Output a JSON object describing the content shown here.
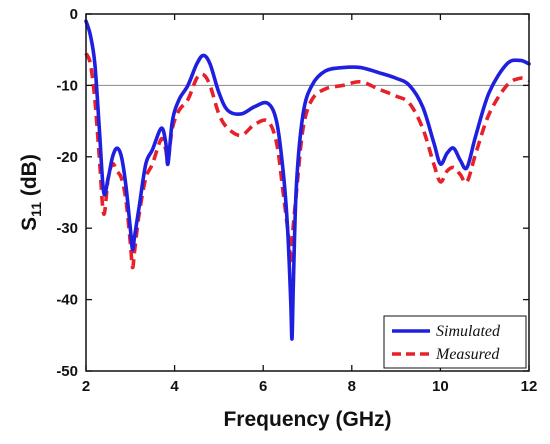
{
  "chart_data": {
    "type": "line",
    "xlabel": "Frequency (GHz)",
    "ylabel_main": "S",
    "ylabel_sub": "11",
    "ylabel_unit": " (dB)",
    "xlim": [
      2,
      12
    ],
    "ylim": [
      -50,
      0
    ],
    "xticks": [
      2,
      4,
      6,
      8,
      10,
      12
    ],
    "yticks": [
      0,
      -10,
      -20,
      -30,
      -40,
      -50
    ],
    "reference_line": -10,
    "grid": false,
    "legend_position": "bottom-right",
    "series": [
      {
        "name": "Simulated",
        "color": "#1f1fe0",
        "style": "solid",
        "points": [
          [
            2.0,
            -1.0
          ],
          [
            2.1,
            -3.0
          ],
          [
            2.2,
            -7.0
          ],
          [
            2.3,
            -16.0
          ],
          [
            2.4,
            -25.0
          ],
          [
            2.5,
            -23.0
          ],
          [
            2.6,
            -20.0
          ],
          [
            2.7,
            -18.8
          ],
          [
            2.8,
            -20.0
          ],
          [
            2.9,
            -24.0
          ],
          [
            3.0,
            -30.0
          ],
          [
            3.05,
            -33.0
          ],
          [
            3.1,
            -31.0
          ],
          [
            3.2,
            -27.0
          ],
          [
            3.35,
            -21.0
          ],
          [
            3.5,
            -19.0
          ],
          [
            3.7,
            -16.0
          ],
          [
            3.8,
            -18.0
          ],
          [
            3.85,
            -21.0
          ],
          [
            3.95,
            -15.0
          ],
          [
            4.1,
            -12.0
          ],
          [
            4.3,
            -10.0
          ],
          [
            4.5,
            -7.0
          ],
          [
            4.65,
            -5.8
          ],
          [
            4.8,
            -7.0
          ],
          [
            5.0,
            -11.0
          ],
          [
            5.2,
            -13.5
          ],
          [
            5.5,
            -14.0
          ],
          [
            5.8,
            -13.0
          ],
          [
            6.1,
            -12.5
          ],
          [
            6.3,
            -15.0
          ],
          [
            6.45,
            -22.0
          ],
          [
            6.55,
            -30.0
          ],
          [
            6.62,
            -40.0
          ],
          [
            6.65,
            -45.5
          ],
          [
            6.68,
            -38.0
          ],
          [
            6.75,
            -24.0
          ],
          [
            6.9,
            -14.0
          ],
          [
            7.1,
            -10.0
          ],
          [
            7.4,
            -8.0
          ],
          [
            7.8,
            -7.5
          ],
          [
            8.2,
            -7.5
          ],
          [
            8.6,
            -8.2
          ],
          [
            9.0,
            -9.0
          ],
          [
            9.3,
            -10.0
          ],
          [
            9.6,
            -13.0
          ],
          [
            9.85,
            -18.0
          ],
          [
            10.0,
            -21.0
          ],
          [
            10.15,
            -19.5
          ],
          [
            10.3,
            -18.8
          ],
          [
            10.45,
            -20.5
          ],
          [
            10.6,
            -21.5
          ],
          [
            10.8,
            -17.0
          ],
          [
            11.1,
            -11.0
          ],
          [
            11.5,
            -7.0
          ],
          [
            11.8,
            -6.5
          ],
          [
            12.0,
            -7.0
          ]
        ]
      },
      {
        "name": "Measured",
        "color": "#e8202a",
        "style": "dashed",
        "points": [
          [
            2.0,
            -5.5
          ],
          [
            2.1,
            -7.0
          ],
          [
            2.2,
            -12.0
          ],
          [
            2.3,
            -20.0
          ],
          [
            2.4,
            -28.0
          ],
          [
            2.5,
            -23.0
          ],
          [
            2.6,
            -21.0
          ],
          [
            2.7,
            -22.0
          ],
          [
            2.8,
            -23.0
          ],
          [
            2.9,
            -26.0
          ],
          [
            3.0,
            -32.0
          ],
          [
            3.05,
            -35.5
          ],
          [
            3.1,
            -33.0
          ],
          [
            3.2,
            -28.0
          ],
          [
            3.35,
            -23.0
          ],
          [
            3.5,
            -21.0
          ],
          [
            3.7,
            -17.5
          ],
          [
            3.8,
            -19.0
          ],
          [
            3.85,
            -20.5
          ],
          [
            3.95,
            -16.0
          ],
          [
            4.1,
            -13.5
          ],
          [
            4.3,
            -12.0
          ],
          [
            4.5,
            -9.0
          ],
          [
            4.65,
            -8.5
          ],
          [
            4.8,
            -10.0
          ],
          [
            5.0,
            -14.0
          ],
          [
            5.2,
            -16.0
          ],
          [
            5.5,
            -17.0
          ],
          [
            5.8,
            -15.5
          ],
          [
            6.1,
            -15.0
          ],
          [
            6.3,
            -18.0
          ],
          [
            6.45,
            -25.0
          ],
          [
            6.55,
            -30.0
          ],
          [
            6.6,
            -33.0
          ],
          [
            6.62,
            -35.0
          ],
          [
            6.66,
            -31.0
          ],
          [
            6.75,
            -25.0
          ],
          [
            6.9,
            -16.0
          ],
          [
            7.1,
            -12.0
          ],
          [
            7.4,
            -10.5
          ],
          [
            7.8,
            -10.0
          ],
          [
            8.2,
            -9.5
          ],
          [
            8.6,
            -10.5
          ],
          [
            9.0,
            -11.5
          ],
          [
            9.3,
            -12.5
          ],
          [
            9.6,
            -16.0
          ],
          [
            9.85,
            -21.0
          ],
          [
            10.0,
            -23.5
          ],
          [
            10.15,
            -22.0
          ],
          [
            10.3,
            -21.5
          ],
          [
            10.45,
            -22.5
          ],
          [
            10.6,
            -23.5
          ],
          [
            10.8,
            -19.5
          ],
          [
            11.1,
            -14.0
          ],
          [
            11.5,
            -10.0
          ],
          [
            11.8,
            -9.0
          ],
          [
            12.0,
            -9.3
          ]
        ]
      }
    ]
  }
}
